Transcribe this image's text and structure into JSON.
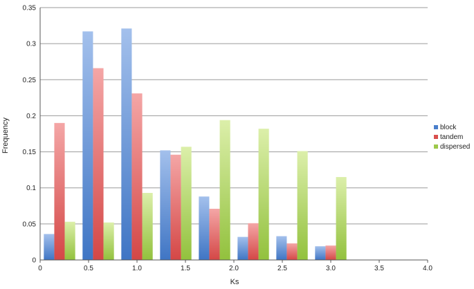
{
  "chart_data": {
    "type": "bar",
    "xlabel": "Ks",
    "ylabel": "Frequency",
    "ylim": [
      0,
      0.35
    ],
    "yticks": [
      "0",
      "0.05",
      "0.1",
      "0.15",
      "0.2",
      "0.25",
      "0.3",
      "0.35"
    ],
    "xlim": [
      0,
      4.0
    ],
    "xticks": [
      "0",
      "0.5",
      "1.0",
      "1.5",
      "2.0",
      "2.5",
      "3.0",
      "3.5",
      "4.0"
    ],
    "bin_width": 0.4,
    "categories": [
      "0.2",
      "0.6",
      "1.0",
      "1.4",
      "1.8",
      "2.2",
      "2.6",
      "3.0",
      "3.4",
      "3.8"
    ],
    "grid": "horizontal",
    "legend_position": "right",
    "series": [
      {
        "name": "block",
        "color": "#4a7fcb",
        "values": [
          0.036,
          0.317,
          0.321,
          0.152,
          0.088,
          0.032,
          0.033,
          0.019,
          0,
          0
        ]
      },
      {
        "name": "tandem",
        "color": "#d9504e",
        "values": [
          0.19,
          0.266,
          0.231,
          0.146,
          0.071,
          0.051,
          0.023,
          0.02,
          0,
          0
        ]
      },
      {
        "name": "dispersed",
        "color": "#9dc84a",
        "values": [
          0.053,
          0.052,
          0.093,
          0.157,
          0.194,
          0.182,
          0.151,
          0.115,
          0,
          0
        ]
      }
    ]
  }
}
